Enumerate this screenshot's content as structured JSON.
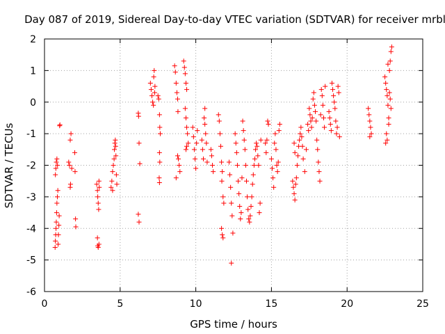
{
  "chart_data": {
    "type": "scatter",
    "title": "Day 087 of 2019, Sidereal Day-to-day VTEC variation (SDTVAR) for receiver mrbl",
    "xlabel": "GPS time / hours",
    "ylabel": "SDTVAR / TECUs",
    "xlim": [
      0,
      25
    ],
    "ylim": [
      -6,
      2
    ],
    "xticks": [
      "0",
      "5",
      "10",
      "15",
      "20",
      "25"
    ],
    "yticks": [
      "-6",
      "-5",
      "-4",
      "-3",
      "-2",
      "-1",
      "0",
      "1",
      "2"
    ],
    "grid": true,
    "marker": "plus",
    "color": "#ff0000",
    "series": [
      {
        "name": "SDTVAR",
        "points": [
          [
            0.7,
            -4.6
          ],
          [
            0.72,
            -4.4
          ],
          [
            0.74,
            -4.2
          ],
          [
            0.76,
            -4.0
          ],
          [
            0.78,
            -3.8
          ],
          [
            0.8,
            -3.5
          ],
          [
            0.82,
            -3.2
          ],
          [
            0.85,
            -3.0
          ],
          [
            0.88,
            -2.8
          ],
          [
            0.72,
            -2.3
          ],
          [
            0.75,
            -2.1
          ],
          [
            0.78,
            -1.9
          ],
          [
            0.82,
            -1.8
          ],
          [
            0.86,
            -2.0
          ],
          [
            0.9,
            -4.5
          ],
          [
            0.92,
            -4.2
          ],
          [
            0.95,
            -3.9
          ],
          [
            0.97,
            -3.6
          ],
          [
            1.0,
            -0.75
          ],
          [
            1.02,
            -0.72
          ],
          [
            1.6,
            -1.9
          ],
          [
            1.65,
            -2.0
          ],
          [
            1.7,
            -1.2
          ],
          [
            1.75,
            -1.0
          ],
          [
            1.7,
            -2.7
          ],
          [
            1.72,
            -2.6
          ],
          [
            1.8,
            -2.1
          ],
          [
            2.0,
            -1.6
          ],
          [
            2.02,
            -2.2
          ],
          [
            2.05,
            -3.7
          ],
          [
            2.07,
            -3.95
          ],
          [
            3.45,
            -2.6
          ],
          [
            3.5,
            -2.8
          ],
          [
            3.52,
            -3.0
          ],
          [
            3.55,
            -3.2
          ],
          [
            3.58,
            -3.4
          ],
          [
            3.6,
            -2.5
          ],
          [
            3.62,
            -2.7
          ],
          [
            3.5,
            -4.3
          ],
          [
            3.52,
            -4.55
          ],
          [
            3.55,
            -4.6
          ],
          [
            3.6,
            -4.5
          ],
          [
            4.4,
            -2.7
          ],
          [
            4.45,
            -2.5
          ],
          [
            4.5,
            -2.2
          ],
          [
            4.55,
            -2.0
          ],
          [
            4.6,
            -1.8
          ],
          [
            4.62,
            -1.5
          ],
          [
            4.65,
            -1.3
          ],
          [
            4.68,
            -1.2
          ],
          [
            4.7,
            -1.4
          ],
          [
            4.72,
            -1.7
          ],
          [
            4.75,
            -2.3
          ],
          [
            4.78,
            -2.6
          ],
          [
            4.5,
            -2.8
          ],
          [
            6.2,
            -0.35
          ],
          [
            6.22,
            -0.45
          ],
          [
            6.25,
            -1.3
          ],
          [
            6.3,
            -1.95
          ],
          [
            6.2,
            -3.55
          ],
          [
            6.25,
            -3.8
          ],
          [
            7.0,
            0.6
          ],
          [
            7.05,
            0.4
          ],
          [
            7.1,
            0.2
          ],
          [
            7.15,
            0.0
          ],
          [
            7.2,
            -0.1
          ],
          [
            7.22,
            0.8
          ],
          [
            7.25,
            1.0
          ],
          [
            7.3,
            0.5
          ],
          [
            7.28,
            0.3
          ],
          [
            7.5,
            0.2
          ],
          [
            7.55,
            0.1
          ],
          [
            7.6,
            -0.4
          ],
          [
            7.62,
            -0.8
          ],
          [
            7.65,
            -1.0
          ],
          [
            7.6,
            -1.6
          ],
          [
            7.62,
            -1.9
          ],
          [
            7.58,
            -2.4
          ],
          [
            7.6,
            -2.55
          ],
          [
            8.6,
            1.15
          ],
          [
            8.65,
            0.95
          ],
          [
            8.7,
            0.6
          ],
          [
            8.75,
            0.3
          ],
          [
            8.8,
            0.1
          ],
          [
            8.82,
            -0.3
          ],
          [
            8.85,
            -1.8
          ],
          [
            8.9,
            -2.0
          ],
          [
            8.95,
            -2.2
          ],
          [
            8.7,
            -2.4
          ],
          [
            8.8,
            -1.7
          ],
          [
            9.2,
            1.3
          ],
          [
            9.25,
            1.1
          ],
          [
            9.3,
            0.9
          ],
          [
            9.35,
            0.6
          ],
          [
            9.4,
            0.4
          ],
          [
            9.3,
            -0.2
          ],
          [
            9.35,
            -0.5
          ],
          [
            9.4,
            -0.8
          ],
          [
            9.45,
            -1.0
          ],
          [
            9.5,
            -1.3
          ],
          [
            9.35,
            -1.5
          ],
          [
            9.4,
            -1.4
          ],
          [
            9.8,
            -0.8
          ],
          [
            9.85,
            -1.1
          ],
          [
            9.9,
            -1.5
          ],
          [
            9.95,
            -1.8
          ],
          [
            10.0,
            -2.1
          ],
          [
            10.05,
            -1.3
          ],
          [
            10.1,
            -0.9
          ],
          [
            10.4,
            -1.2
          ],
          [
            10.45,
            -1.5
          ],
          [
            10.5,
            -1.8
          ],
          [
            10.55,
            -0.5
          ],
          [
            10.6,
            -0.7
          ],
          [
            10.65,
            -1.0
          ],
          [
            10.7,
            -1.3
          ],
          [
            10.75,
            -1.9
          ],
          [
            10.6,
            -0.2
          ],
          [
            11.0,
            -1.5
          ],
          [
            11.05,
            -1.7
          ],
          [
            11.1,
            -2.0
          ],
          [
            11.15,
            -2.2
          ],
          [
            11.5,
            -0.4
          ],
          [
            11.55,
            -0.6
          ],
          [
            11.6,
            -1.0
          ],
          [
            11.65,
            -1.4
          ],
          [
            11.7,
            -1.9
          ],
          [
            11.75,
            -2.2
          ],
          [
            11.8,
            -3.0
          ],
          [
            11.85,
            -3.2
          ],
          [
            11.7,
            -4.0
          ],
          [
            11.75,
            -4.2
          ],
          [
            11.8,
            -4.3
          ],
          [
            11.72,
            -2.5
          ],
          [
            12.2,
            -1.9
          ],
          [
            12.25,
            -2.3
          ],
          [
            12.3,
            -2.7
          ],
          [
            12.35,
            -3.2
          ],
          [
            12.4,
            -3.6
          ],
          [
            12.45,
            -4.15
          ],
          [
            12.35,
            -5.1
          ],
          [
            12.6,
            -1.0
          ],
          [
            12.65,
            -1.3
          ],
          [
            12.7,
            -1.6
          ],
          [
            12.75,
            -2.0
          ],
          [
            12.8,
            -2.5
          ],
          [
            12.85,
            -2.9
          ],
          [
            12.9,
            -3.3
          ],
          [
            12.95,
            -3.7
          ],
          [
            13.0,
            -3.5
          ],
          [
            13.05,
            -2.4
          ],
          [
            13.1,
            -0.6
          ],
          [
            13.15,
            -0.9
          ],
          [
            13.2,
            -1.2
          ],
          [
            13.25,
            -1.5
          ],
          [
            13.3,
            -2.0
          ],
          [
            13.35,
            -2.5
          ],
          [
            13.4,
            -3.0
          ],
          [
            13.45,
            -3.4
          ],
          [
            13.5,
            -3.7
          ],
          [
            13.55,
            -3.8
          ],
          [
            13.6,
            -3.6
          ],
          [
            13.65,
            -3.3
          ],
          [
            13.7,
            -3.0
          ],
          [
            13.75,
            -2.6
          ],
          [
            13.8,
            -2.3
          ],
          [
            13.85,
            -2.0
          ],
          [
            13.9,
            -1.8
          ],
          [
            13.95,
            -1.5
          ],
          [
            14.0,
            -1.3
          ],
          [
            14.05,
            -1.4
          ],
          [
            14.1,
            -1.7
          ],
          [
            14.15,
            -2.0
          ],
          [
            14.2,
            -3.5
          ],
          [
            14.25,
            -3.2
          ],
          [
            14.3,
            -1.2
          ],
          [
            14.6,
            -1.3
          ],
          [
            14.65,
            -1.6
          ],
          [
            14.7,
            -1.2
          ],
          [
            14.75,
            -0.6
          ],
          [
            14.8,
            -0.7
          ],
          [
            15.0,
            -1.8
          ],
          [
            15.05,
            -2.1
          ],
          [
            15.1,
            -2.4
          ],
          [
            15.15,
            -2.7
          ],
          [
            15.2,
            -1.3
          ],
          [
            15.25,
            -1.0
          ],
          [
            15.3,
            -1.5
          ],
          [
            15.35,
            -2.0
          ],
          [
            15.4,
            -2.2
          ],
          [
            15.45,
            -1.9
          ],
          [
            15.5,
            -0.9
          ],
          [
            15.55,
            -0.7
          ],
          [
            16.4,
            -2.5
          ],
          [
            16.45,
            -2.7
          ],
          [
            16.5,
            -2.9
          ],
          [
            16.55,
            -3.1
          ],
          [
            16.6,
            -2.6
          ],
          [
            16.65,
            -2.4
          ],
          [
            16.7,
            -2.0
          ],
          [
            16.75,
            -1.7
          ],
          [
            16.8,
            -1.4
          ],
          [
            16.85,
            -1.2
          ],
          [
            16.9,
            -1.0
          ],
          [
            16.95,
            -0.8
          ],
          [
            16.5,
            -1.3
          ],
          [
            16.55,
            -1.6
          ],
          [
            17.0,
            -1.1
          ],
          [
            17.05,
            -1.4
          ],
          [
            17.1,
            -1.8
          ],
          [
            17.2,
            -2.2
          ],
          [
            17.3,
            -1.5
          ],
          [
            17.4,
            -0.7
          ],
          [
            17.45,
            -0.9
          ],
          [
            17.5,
            -0.2
          ],
          [
            17.55,
            -0.4
          ],
          [
            17.6,
            -0.6
          ],
          [
            17.65,
            -0.8
          ],
          [
            17.7,
            -0.5
          ],
          [
            17.75,
            0.1
          ],
          [
            17.8,
            0.3
          ],
          [
            17.85,
            -0.1
          ],
          [
            17.9,
            -0.3
          ],
          [
            17.95,
            -0.6
          ],
          [
            18.0,
            -1.2
          ],
          [
            18.05,
            -1.5
          ],
          [
            18.1,
            -1.9
          ],
          [
            18.15,
            -2.2
          ],
          [
            18.2,
            -2.5
          ],
          [
            18.25,
            -0.4
          ],
          [
            18.3,
            0.4
          ],
          [
            18.35,
            0.2
          ],
          [
            18.4,
            -0.1
          ],
          [
            18.45,
            -0.5
          ],
          [
            18.5,
            -0.8
          ],
          [
            18.55,
            0.5
          ],
          [
            18.8,
            -0.3
          ],
          [
            18.85,
            -0.5
          ],
          [
            18.9,
            -0.7
          ],
          [
            18.95,
            -0.9
          ],
          [
            19.0,
            0.6
          ],
          [
            19.05,
            0.4
          ],
          [
            19.1,
            0.2
          ],
          [
            19.15,
            0.0
          ],
          [
            19.2,
            -0.2
          ],
          [
            19.25,
            -0.6
          ],
          [
            19.3,
            -1.0
          ],
          [
            19.35,
            -0.8
          ],
          [
            19.4,
            0.5
          ],
          [
            19.45,
            0.3
          ],
          [
            19.5,
            -1.1
          ],
          [
            21.4,
            -0.2
          ],
          [
            21.45,
            -0.4
          ],
          [
            21.5,
            -0.6
          ],
          [
            21.55,
            -0.8
          ],
          [
            21.6,
            -1.0
          ],
          [
            21.5,
            -1.1
          ],
          [
            22.5,
            0.8
          ],
          [
            22.55,
            0.6
          ],
          [
            22.6,
            0.4
          ],
          [
            22.65,
            0.2
          ],
          [
            22.7,
            -0.1
          ],
          [
            22.75,
            -0.5
          ],
          [
            22.6,
            -1.0
          ],
          [
            22.65,
            -1.2
          ],
          [
            22.55,
            -1.3
          ],
          [
            22.8,
            1.0
          ],
          [
            22.85,
            1.3
          ],
          [
            22.9,
            1.6
          ],
          [
            22.95,
            1.75
          ],
          [
            22.8,
            0.3
          ],
          [
            22.85,
            0.1
          ],
          [
            22.9,
            -0.2
          ],
          [
            22.75,
            -0.7
          ],
          [
            22.7,
            1.2
          ]
        ]
      }
    ]
  }
}
